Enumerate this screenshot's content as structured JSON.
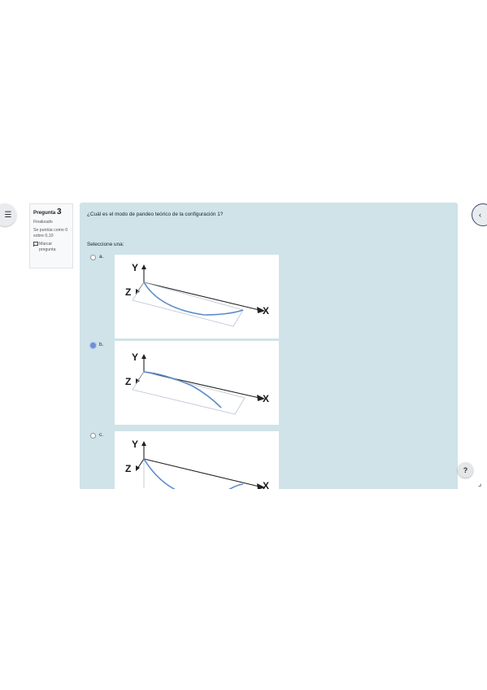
{
  "drawer": {
    "icon": "list-icon",
    "glyph": "☰"
  },
  "question_info": {
    "label": "Pregunta",
    "number": "3",
    "state": "Finalizado",
    "grade": "Se puntúa como 0 sobre 0,10",
    "flag_icon": "flag-icon",
    "flag_label": "Marcar pregunta"
  },
  "question": {
    "text": "¿Cuál es el modo de pandeo teórico de la configuración 1?",
    "prompt": "Seleccione una:",
    "options": [
      {
        "letter": "a.",
        "selected": false
      },
      {
        "letter": "b.",
        "selected": true
      },
      {
        "letter": "c.",
        "selected": false
      }
    ],
    "figure_labels": {
      "y": "Y",
      "z": "Z",
      "x": "X"
    },
    "curve_color": "#5b8cc9"
  },
  "help": {
    "icon": "question-mark-icon",
    "glyph": "?"
  },
  "nav": {
    "icon": "chevron-left-icon",
    "glyph": "‹"
  }
}
